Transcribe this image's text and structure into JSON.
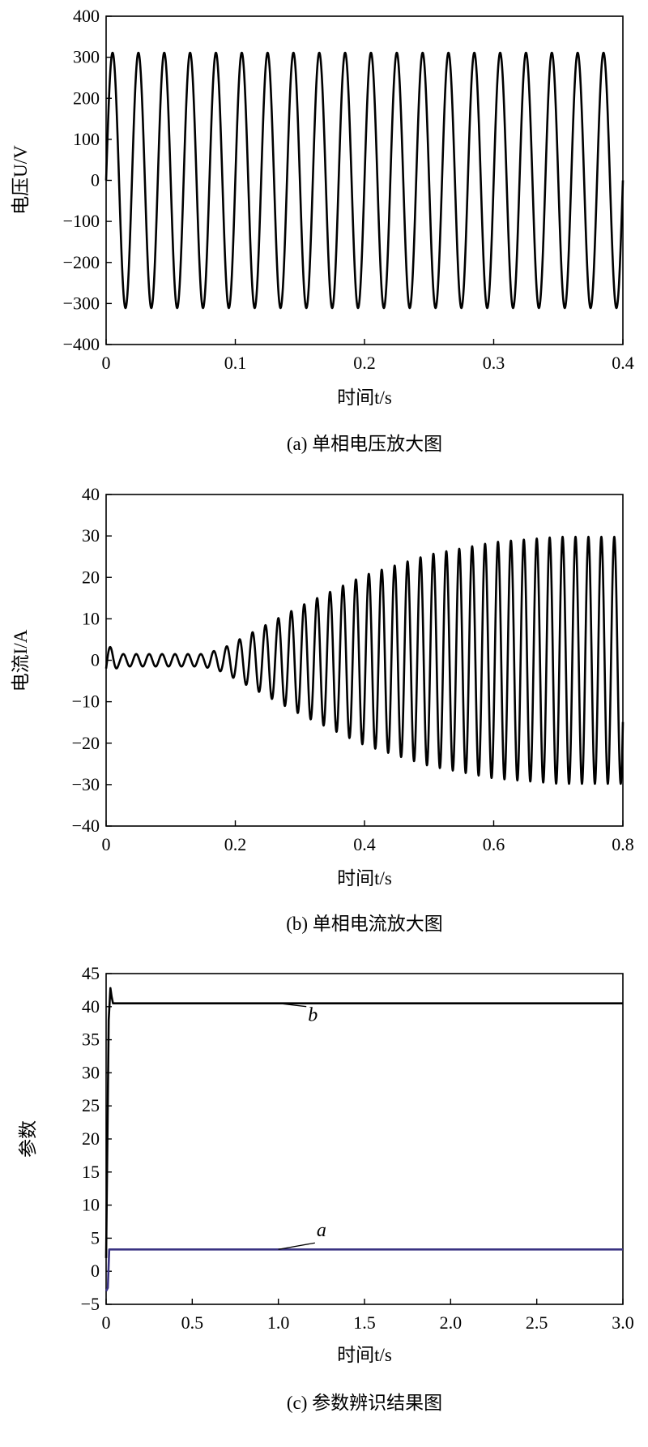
{
  "chart_data": [
    {
      "id": "a",
      "type": "line",
      "caption": "(a) 单相电压放大图",
      "xlabel": "时间t/s",
      "ylabel": "电压U/V",
      "xlim": [
        0,
        0.4
      ],
      "ylim": [
        -400,
        400
      ],
      "xticks": [
        0,
        0.1,
        0.2,
        0.3,
        0.4
      ],
      "xtick_labels": [
        "0",
        "0.1",
        "0.2",
        "0.3",
        "0.4"
      ],
      "yticks": [
        -400,
        -300,
        -200,
        -100,
        0,
        100,
        200,
        300,
        400
      ],
      "ytick_labels": [
        "−400",
        "−300",
        "−200",
        "−100",
        "0",
        "100",
        "200",
        "300",
        "400"
      ],
      "grid": false,
      "series": [
        {
          "color": "#000000",
          "function": "sine",
          "amplitude": 311,
          "frequency_hz": 50,
          "phase_deg": 0,
          "x_range": [
            0,
            0.4
          ]
        }
      ]
    },
    {
      "id": "b",
      "type": "line",
      "caption": "(b) 单相电流放大图",
      "xlabel": "时间t/s",
      "ylabel": "电流I/A",
      "xlim": [
        0,
        0.8
      ],
      "ylim": [
        -40,
        40
      ],
      "xticks": [
        0,
        0.2,
        0.4,
        0.6,
        0.8
      ],
      "xtick_labels": [
        "0",
        "0.2",
        "0.4",
        "0.6",
        "0.8"
      ],
      "yticks": [
        -40,
        -30,
        -20,
        -10,
        0,
        10,
        20,
        30,
        40
      ],
      "ytick_labels": [
        "−40",
        "−30",
        "−20",
        "−10",
        "0",
        "10",
        "20",
        "30",
        "40"
      ],
      "grid": false,
      "series": [
        {
          "color": "#000000",
          "function": "sine",
          "frequency_hz": 50,
          "phase_deg": -30,
          "x_range": [
            0,
            0.8
          ],
          "envelope": {
            "t": [
              0,
              0.02,
              0.15,
              0.18,
              0.2,
              0.3,
              0.4,
              0.5,
              0.6,
              0.7,
              0.8
            ],
            "amplitude": [
              4,
              1.5,
              1.5,
              2.8,
              4.5,
              13,
              20.5,
              25.5,
              28.5,
              29.8,
              29.8
            ]
          }
        }
      ]
    },
    {
      "id": "c",
      "type": "line",
      "caption": "(c) 参数辨识结果图",
      "xlabel": "时间t/s",
      "ylabel": "参数",
      "xlim": [
        0,
        3.0
      ],
      "ylim": [
        -5,
        45
      ],
      "xticks": [
        0,
        0.5,
        1.0,
        1.5,
        2.0,
        2.5,
        3.0
      ],
      "xtick_labels": [
        "0",
        "0.5",
        "1.0",
        "1.5",
        "2.0",
        "2.5",
        "3.0"
      ],
      "yticks": [
        -5,
        0,
        5,
        10,
        15,
        20,
        25,
        30,
        35,
        40,
        45
      ],
      "ytick_labels": [
        "−5",
        "0",
        "5",
        "10",
        "15",
        "20",
        "25",
        "30",
        "35",
        "40",
        "45"
      ],
      "grid": false,
      "series": [
        {
          "name": "b",
          "color": "#000000",
          "x": [
            0,
            0.015,
            0.025,
            0.032,
            0.04,
            0.06,
            0.1,
            3.0
          ],
          "y": [
            2,
            38,
            42.8,
            41.5,
            40.5,
            40.5,
            40.5,
            40.5
          ]
        },
        {
          "name": "a",
          "color": "#3a3382",
          "x": [
            0,
            0.01,
            0.018,
            0.025,
            0.05,
            3.0
          ],
          "y": [
            -3,
            -2.5,
            3.3,
            3.3,
            3.3,
            3.3
          ]
        }
      ],
      "annotations": [
        {
          "text": "b",
          "series": "b",
          "at_x": 1.0,
          "label_x": 1.2,
          "label_y": 38.3
        },
        {
          "text": "a",
          "series": "a",
          "at_x": 1.0,
          "label_x": 1.25,
          "label_y": 6.0
        }
      ]
    }
  ]
}
